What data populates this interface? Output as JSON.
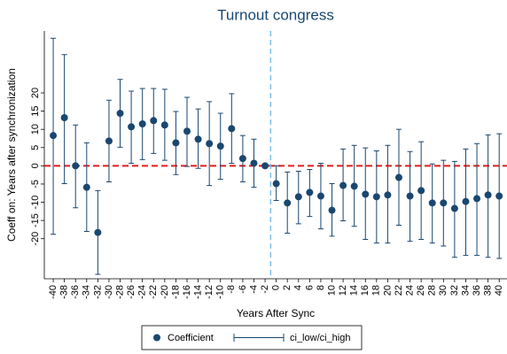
{
  "chart_data": {
    "type": "errorbar",
    "title": "Turnout congress",
    "x_label": "Years After Sync",
    "y_label": "Coeff on: Years after synchronization",
    "x": [
      -40,
      -38,
      -36,
      -34,
      -32,
      -30,
      -28,
      -26,
      -24,
      -22,
      -20,
      -18,
      -16,
      -14,
      -12,
      -10,
      -8,
      -6,
      -4,
      -2,
      0,
      2,
      4,
      6,
      8,
      10,
      12,
      14,
      16,
      18,
      20,
      22,
      24,
      26,
      28,
      30,
      32,
      34,
      36,
      38,
      40
    ],
    "series": [
      {
        "name": "Coefficient",
        "color": "#1a476f",
        "values": [
          8.3,
          13.2,
          0,
          -5.9,
          -18.3,
          6.8,
          14.4,
          10.7,
          11.5,
          12.4,
          11.2,
          6.3,
          9.5,
          7.3,
          6.1,
          5.4,
          10.2,
          2,
          0.7,
          0,
          -4.9,
          -10.2,
          -8.5,
          -7.3,
          -8.3,
          -12.2,
          -5.4,
          -5.6,
          -7.8,
          -8.5,
          -8,
          -3.2,
          -8.3,
          -6.8,
          -10.2,
          -10.2,
          -11.7,
          -9.8,
          -9,
          -8,
          -8.3
        ]
      },
      {
        "name": "ci_low/ci_high",
        "color": "#1a476f",
        "low": [
          -18.8,
          -4.9,
          -11.5,
          -18,
          -29.8,
          -4.4,
          5.1,
          0.7,
          1.7,
          3.4,
          1.5,
          -2.4,
          -0.2,
          -0.7,
          -5.4,
          -3.7,
          0.7,
          -4.4,
          -5.9,
          null,
          -9.5,
          -18.5,
          -15.9,
          -13.9,
          -17.3,
          -19.3,
          -15.1,
          -16.6,
          -20.2,
          -21.2,
          -21.2,
          -16.3,
          -20.7,
          -20.2,
          -21.2,
          -22,
          -25.1,
          -24.6,
          -24.6,
          -25.1,
          -25.4
        ],
        "high": [
          35,
          30.5,
          11.2,
          6.3,
          -6.8,
          18,
          23.7,
          20.5,
          21.2,
          21.2,
          21,
          14.9,
          18.8,
          15.6,
          17.6,
          14.4,
          19.8,
          8.3,
          7.3,
          null,
          0,
          -1.7,
          -1.5,
          -1,
          0.7,
          -4.9,
          4.6,
          5.6,
          4.9,
          4.1,
          5.6,
          10,
          3.9,
          6.6,
          0.5,
          1.5,
          1.2,
          4.6,
          6.1,
          8.5,
          8.8
        ]
      }
    ],
    "xlim": [
      -41.6,
      41.4
    ],
    "ylim": [
      -31,
      37
    ],
    "xticks": [
      -40,
      -38,
      -36,
      -34,
      -32,
      -30,
      -28,
      -26,
      -24,
      -22,
      -20,
      -18,
      -16,
      -14,
      -12,
      -10,
      -8,
      -6,
      -4,
      -2,
      0,
      2,
      4,
      6,
      8,
      10,
      12,
      14,
      16,
      18,
      20,
      22,
      24,
      26,
      28,
      30,
      32,
      34,
      36,
      38,
      40
    ],
    "yticks": [
      20,
      15,
      10,
      5,
      0,
      -5,
      -10,
      -15,
      -20
    ],
    "hline": {
      "value": 0,
      "color": "#e41a1c"
    },
    "vline": {
      "value": -1,
      "color": "#7fbfe8"
    }
  }
}
